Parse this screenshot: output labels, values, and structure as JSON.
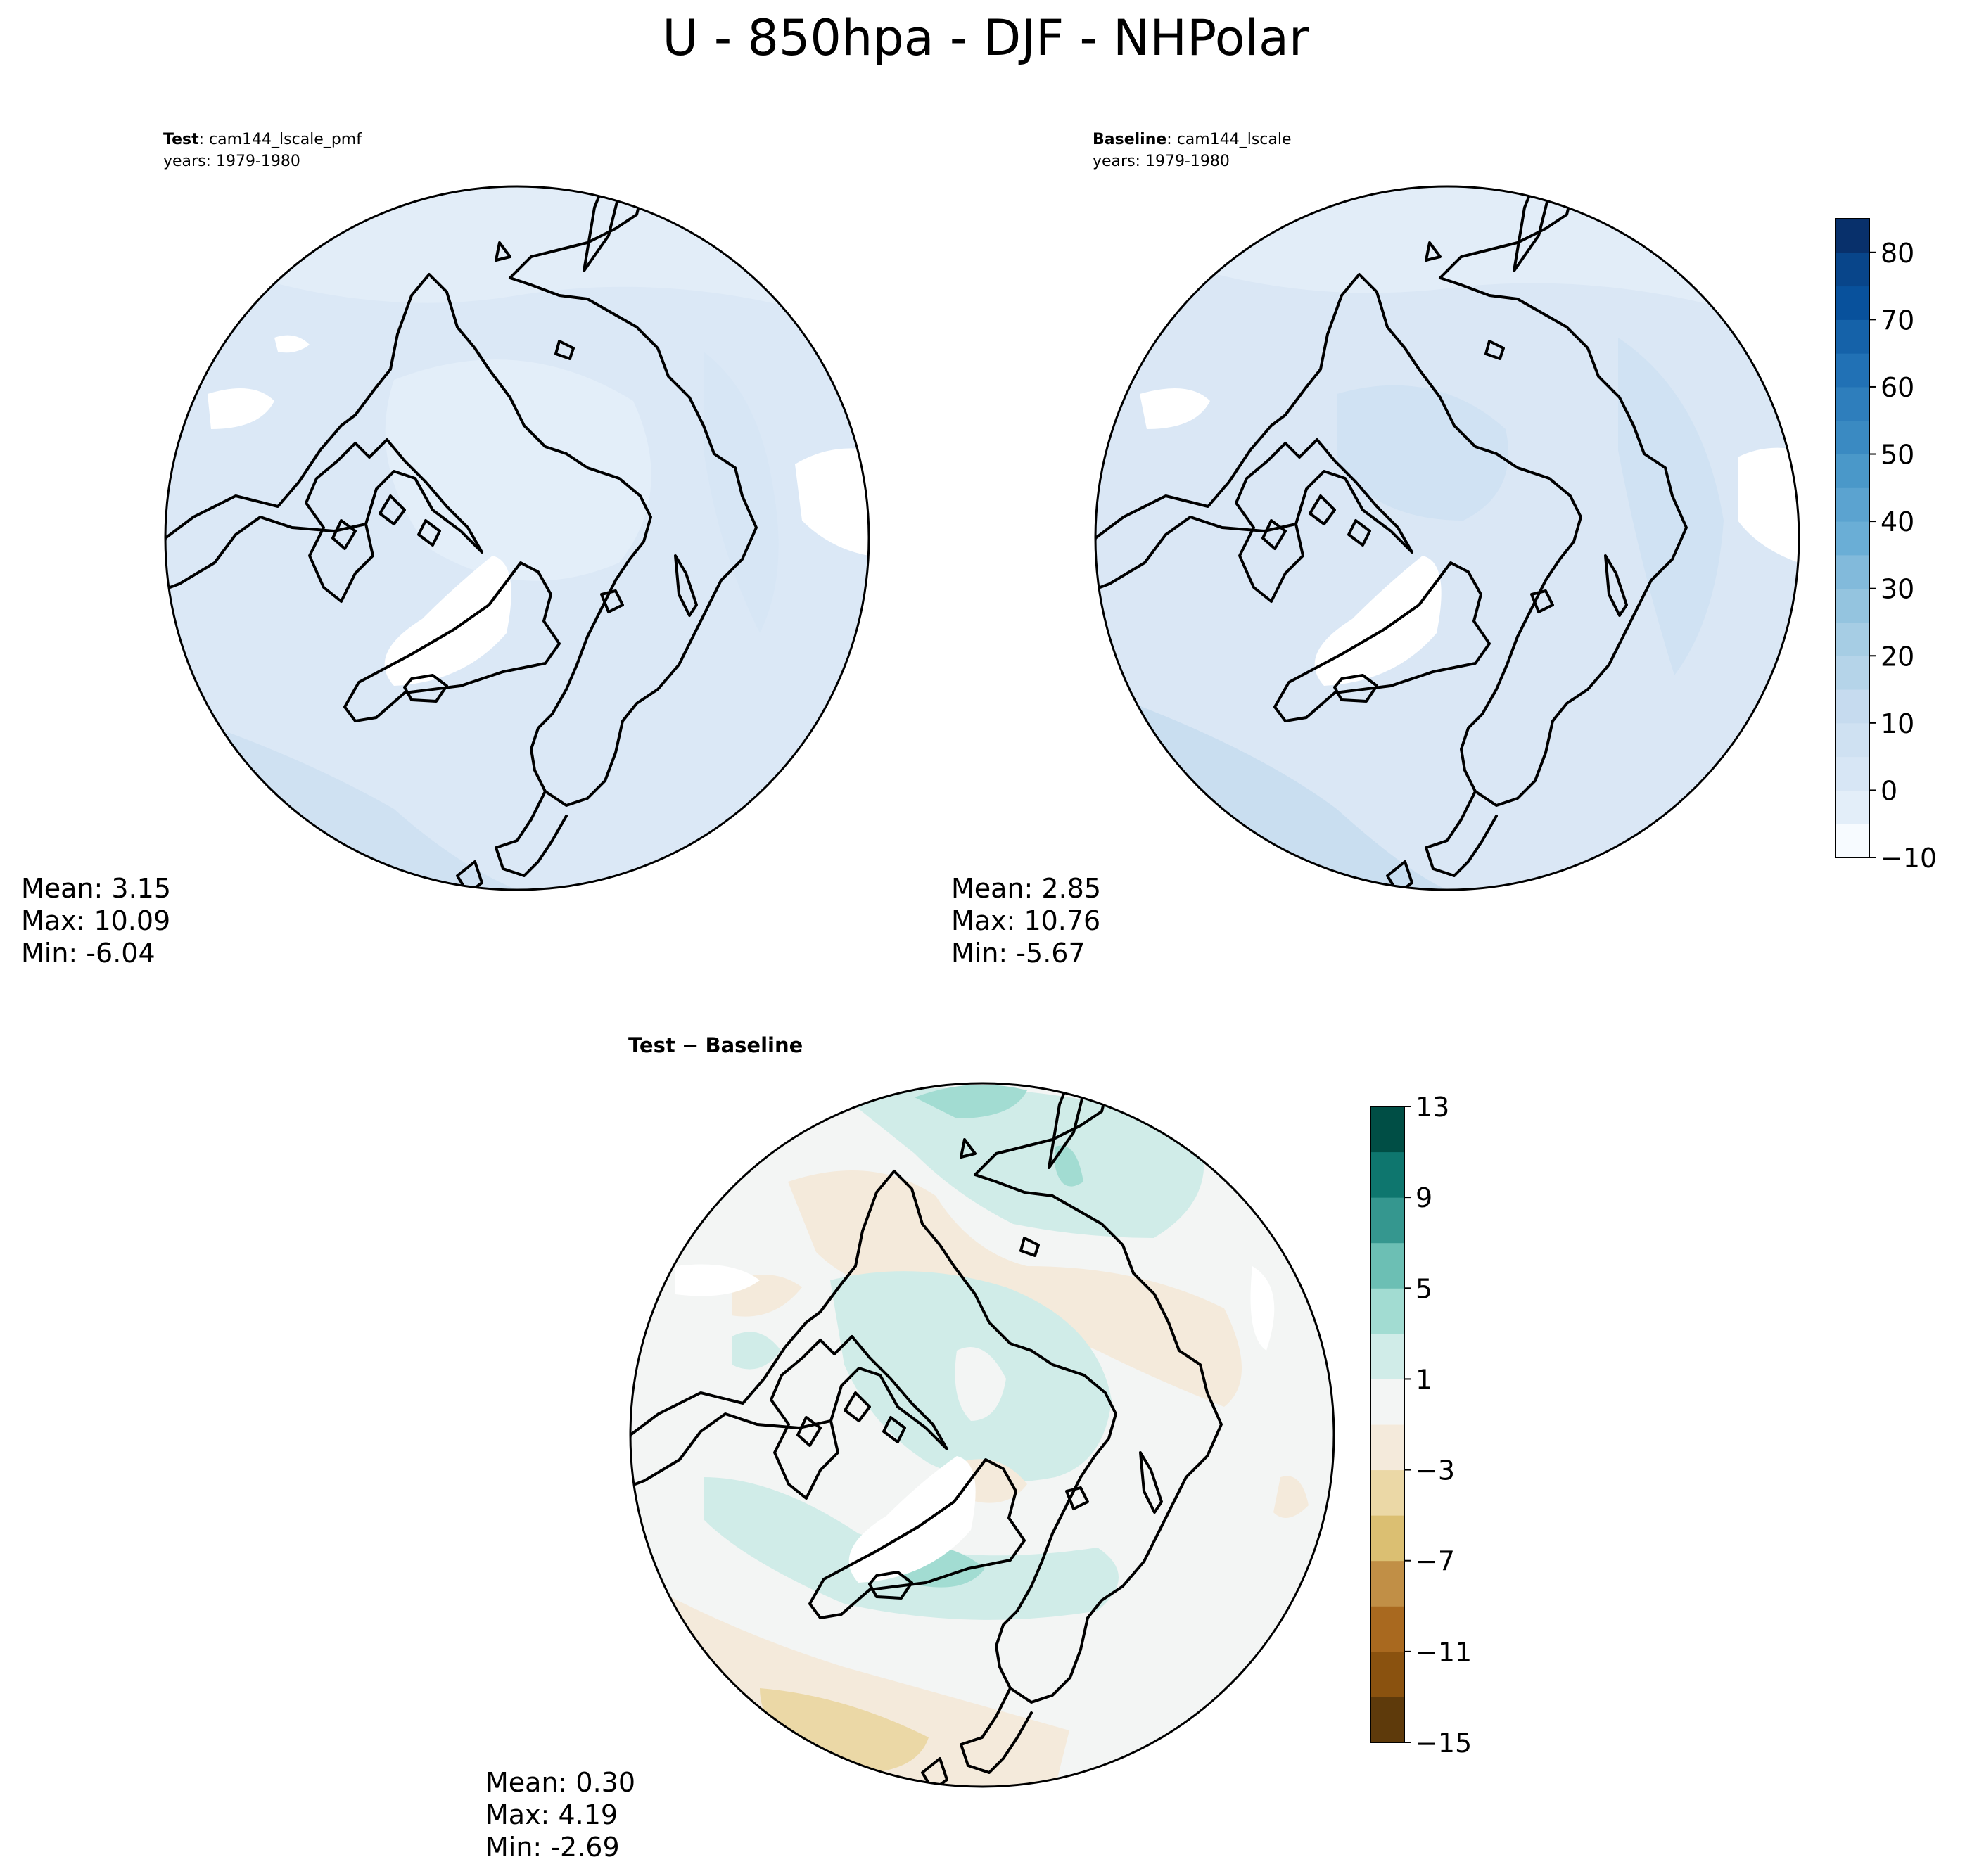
{
  "title": "U - 850hpa - DJF - NHPolar",
  "panels": [
    {
      "id": "test",
      "label_bold": "Test",
      "label_rest": ": cam144_lscale_pmf",
      "years": "years: 1979-1980",
      "stats": {
        "mean": "Mean:  3.15",
        "max": "Max: 10.09",
        "min": "Min: -6.04"
      }
    },
    {
      "id": "baseline",
      "label_bold": "Baseline",
      "label_rest": ": cam144_lscale",
      "years": "years: 1979-1980",
      "stats": {
        "mean": "Mean:  2.85",
        "max": "Max: 10.76",
        "min": "Min: -5.67"
      }
    },
    {
      "id": "diff",
      "label_bold": "Test",
      "label_mid": " − ",
      "label_bold2": "Baseline",
      "stats": {
        "mean": "Mean:  0.30",
        "max": "Max:  4.19",
        "min": "Min: -2.69"
      }
    }
  ],
  "colorbars": {
    "main": {
      "ticks": [
        "80",
        "70",
        "60",
        "50",
        "40",
        "30",
        "20",
        "10",
        "0",
        "−10"
      ],
      "levels": [
        -10,
        -5,
        0,
        5,
        10,
        15,
        20,
        25,
        30,
        35,
        40,
        45,
        50,
        55,
        60,
        65,
        70,
        75,
        80,
        85
      ],
      "colormap": "Blues",
      "colors": [
        "#f7fbff",
        "#e3eef9",
        "#d7e6f5",
        "#cfe1f2",
        "#c6dbef",
        "#b5d4e9",
        "#a6cde4",
        "#94c4df",
        "#82badb",
        "#6aaed6",
        "#5ba3d0",
        "#4a98c9",
        "#3a8ac2",
        "#2e7ebc",
        "#2171b5",
        "#1562a9",
        "#08519c",
        "#08458a",
        "#08306b"
      ]
    },
    "diff": {
      "ticks": [
        "13",
        "9",
        "5",
        "1",
        "−3",
        "−7",
        "−11",
        "−15"
      ],
      "levels": [
        -15,
        -13,
        -11,
        -9,
        -7,
        -5,
        -3,
        -1,
        1,
        3,
        5,
        7,
        9,
        11,
        13
      ],
      "colormap": "BrBG",
      "colors": [
        "#5e3a0b",
        "#8a520f",
        "#a9691f",
        "#c18f46",
        "#dbbf72",
        "#ebd8a6",
        "#f4eadb",
        "#f3f5f4",
        "#d0ece8",
        "#a2dcd2",
        "#6cbfb4",
        "#35978f",
        "#0e766e",
        "#004e45"
      ]
    }
  },
  "chart_data": [
    {
      "type": "heatmap",
      "projection": "north-polar-stereographic",
      "variable": "U",
      "level": "850hpa",
      "season": "DJF",
      "case": "cam144_lscale_pmf",
      "years": "1979-1980",
      "mean": 3.15,
      "max": 10.09,
      "min": -6.04,
      "colorbar_range": [
        -10,
        85
      ]
    },
    {
      "type": "heatmap",
      "projection": "north-polar-stereographic",
      "variable": "U",
      "level": "850hpa",
      "season": "DJF",
      "case": "cam144_lscale",
      "years": "1979-1980",
      "mean": 2.85,
      "max": 10.76,
      "min": -5.67,
      "colorbar_range": [
        -10,
        85
      ]
    },
    {
      "type": "heatmap",
      "projection": "north-polar-stereographic",
      "variable": "U",
      "level": "850hpa",
      "season": "DJF",
      "mean": 0.3,
      "max": 4.19,
      "min": -2.69,
      "colorbar_range": [
        -15,
        13
      ]
    }
  ]
}
